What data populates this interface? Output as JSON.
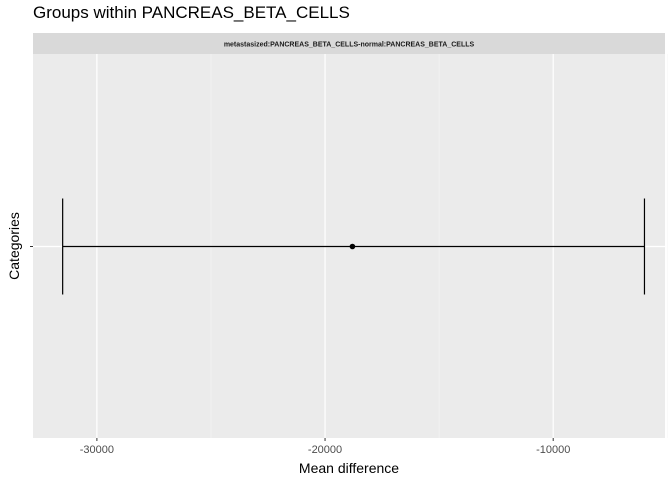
{
  "chart_data": {
    "type": "errorbar",
    "title": "Groups within PANCREAS_BETA_CELLS",
    "facet_label": "metastasized:PANCREAS_BETA_CELLS-normal:PANCREAS_BETA_CELLS",
    "xlabel": "Mean difference",
    "ylabel": "Categories",
    "xlim": [
      -32800,
      -5100
    ],
    "x_ticks": [
      -30000,
      -20000,
      -10000
    ],
    "x_tick_labels": [
      "-30000",
      "-20000",
      "-10000"
    ],
    "x_minor_ticks": [
      -25000,
      -15000,
      -5000
    ],
    "grid": true,
    "background": "#ebebeb",
    "strip_color": "#d9d9d9",
    "points": [
      {
        "estimate": -18800,
        "lower": -31500,
        "upper": -6000
      }
    ]
  }
}
